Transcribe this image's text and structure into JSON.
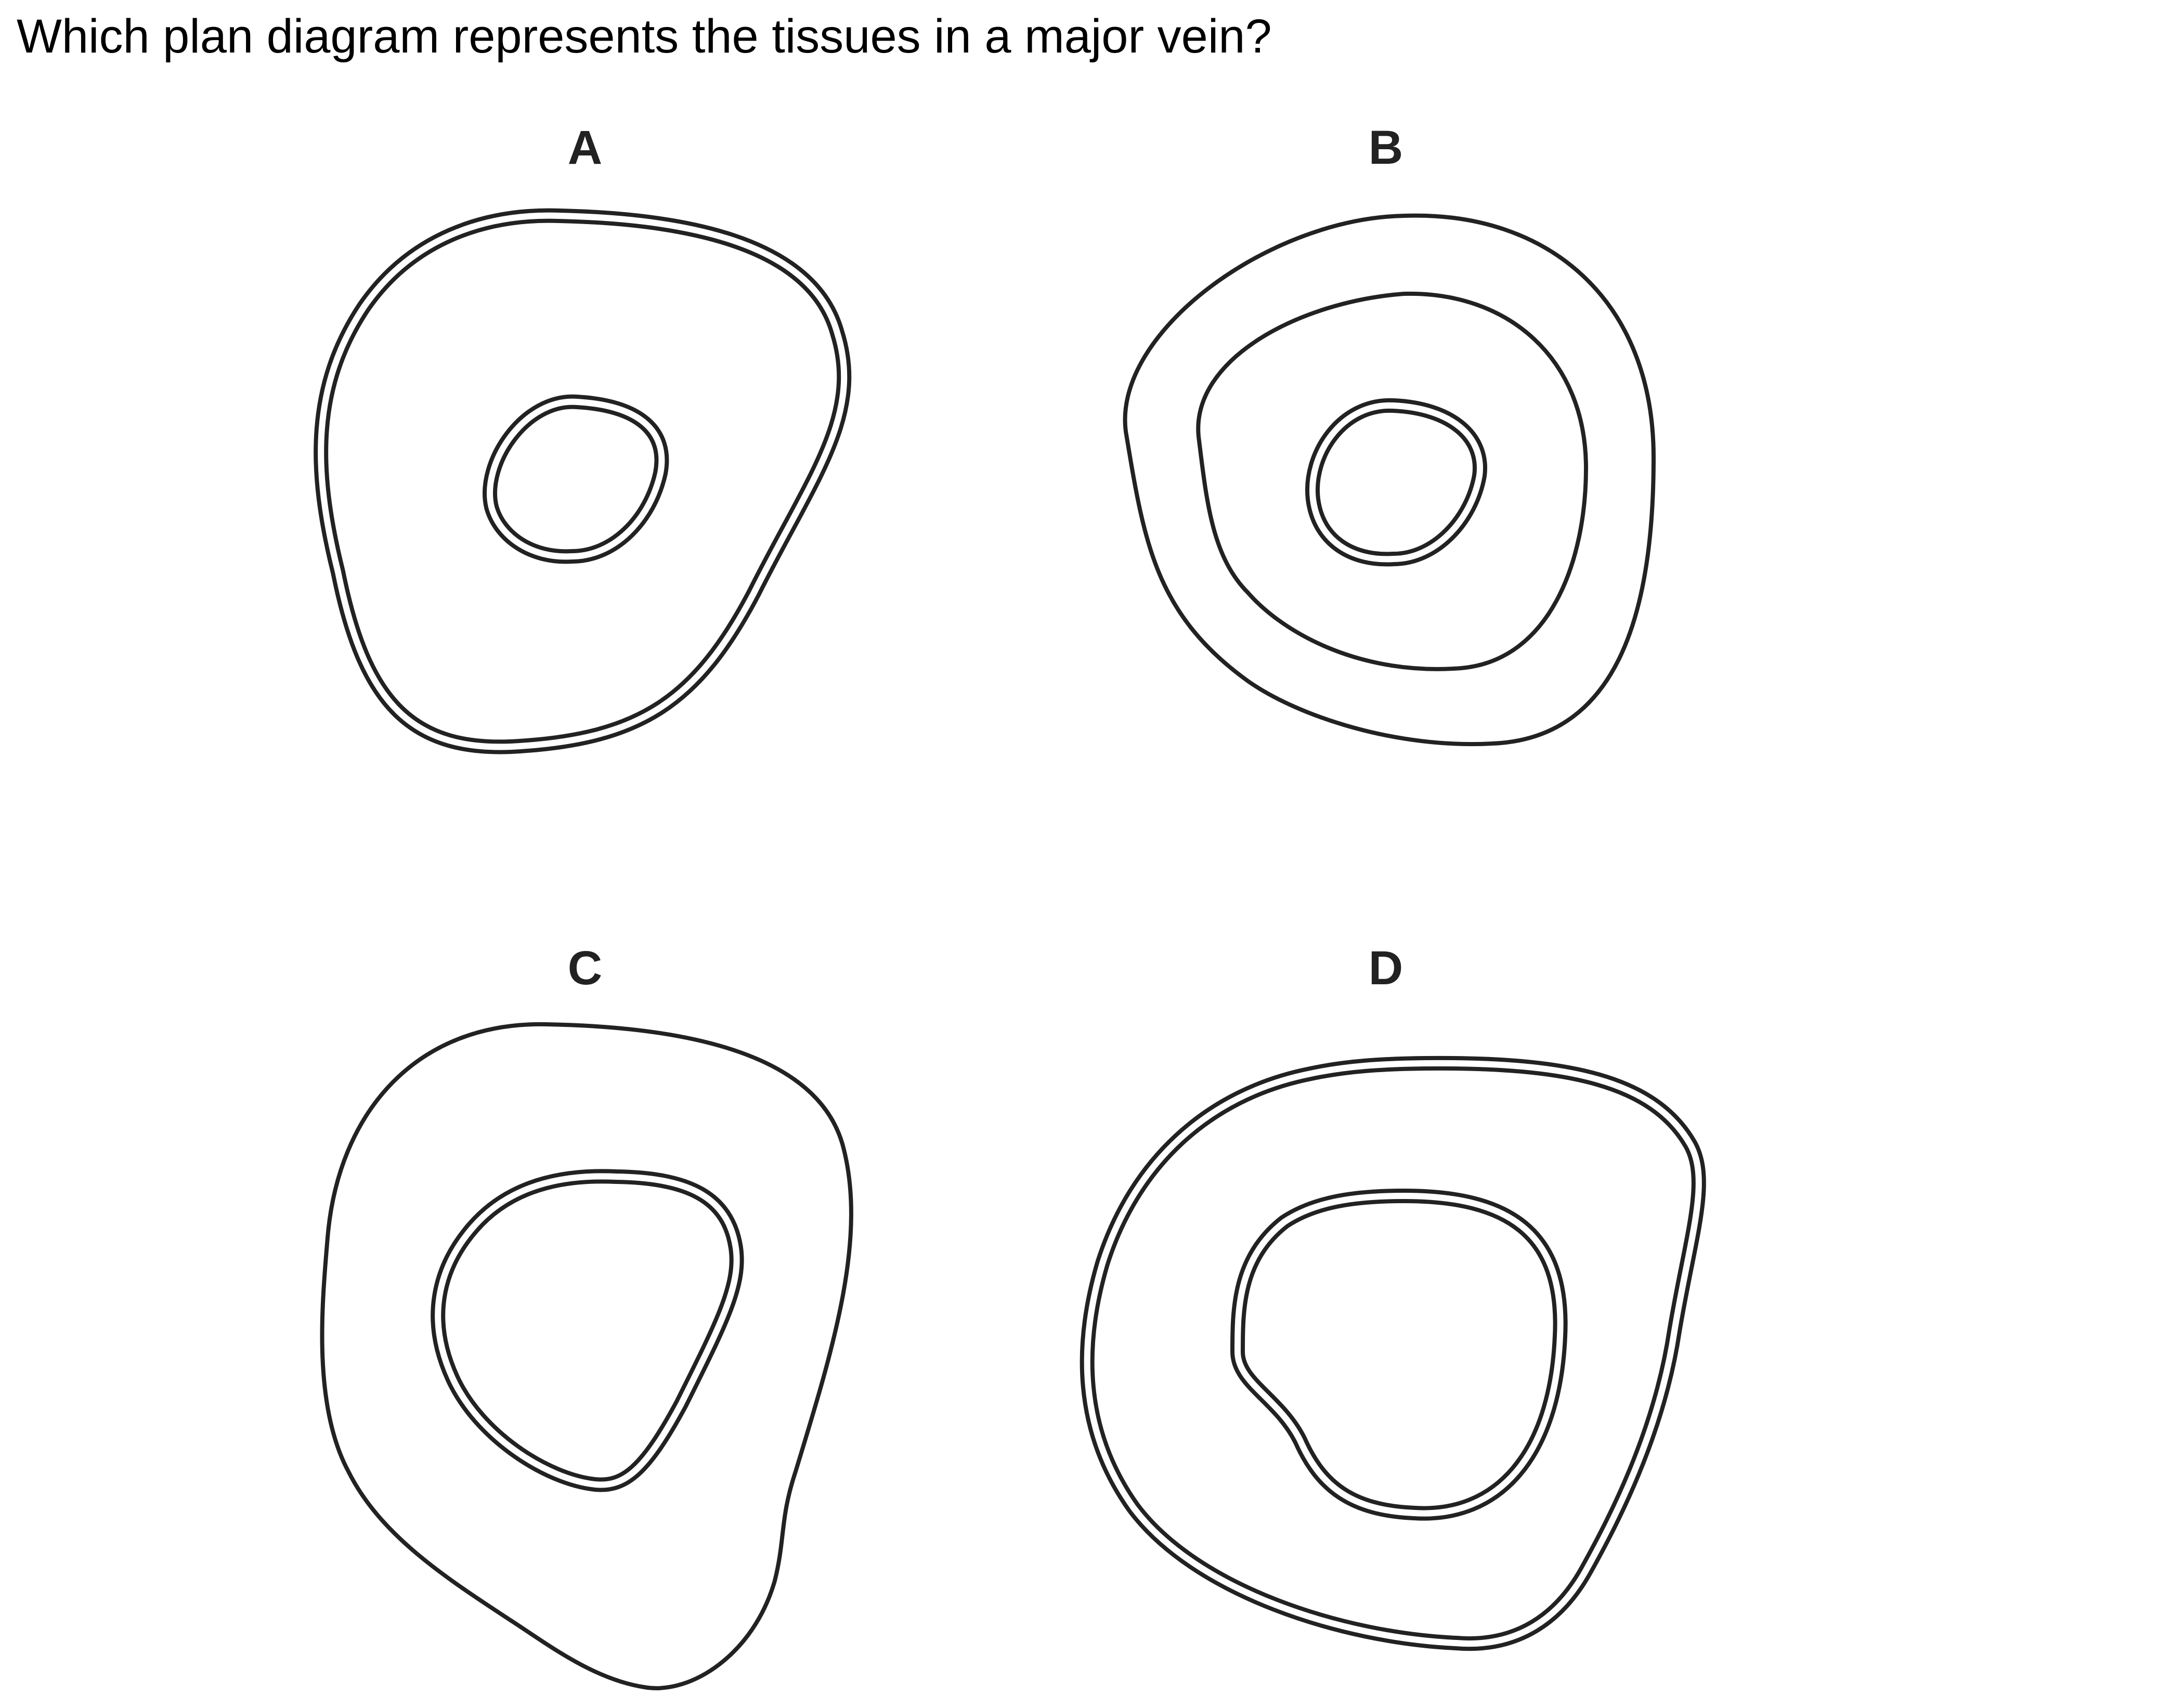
{
  "question": {
    "text": "Which plan diagram represents the tissues in a major vein?"
  },
  "options": [
    {
      "label": "A"
    },
    {
      "label": "B"
    },
    {
      "label": "C"
    },
    {
      "label": "D"
    }
  ],
  "colors": {
    "line": "#222222",
    "background": "#ffffff"
  }
}
